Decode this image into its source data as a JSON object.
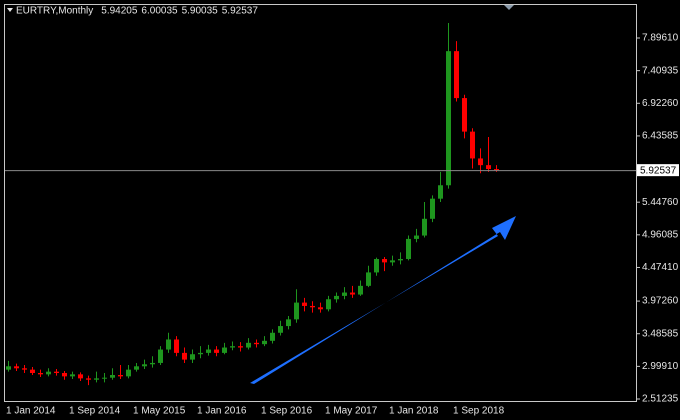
{
  "chart_data": {
    "type": "candlestick",
    "title": "EURTRY,Monthly",
    "categories": [
      "1 Jan 2014",
      null,
      null,
      null,
      null,
      null,
      null,
      null,
      "1 Sep 2014",
      null,
      null,
      null,
      null,
      null,
      null,
      null,
      "1 May 2015",
      null,
      null,
      null,
      null,
      null,
      null,
      null,
      "1 Jan 2016",
      null,
      null,
      null,
      null,
      null,
      null,
      null,
      "1 Sep 2016",
      null,
      null,
      null,
      null,
      null,
      null,
      null,
      "1 May 2017",
      null,
      null,
      null,
      null,
      null,
      null,
      null,
      "1 Jan 2018",
      null,
      null,
      null,
      null,
      null,
      null,
      null,
      "1 Sep 2018",
      null,
      null,
      null,
      null,
      null
    ],
    "open": [
      2.95,
      3.0,
      2.97,
      2.95,
      2.9,
      2.88,
      2.92,
      2.9,
      2.85,
      2.88,
      2.82,
      2.8,
      2.82,
      2.83,
      2.87,
      2.85,
      2.95,
      3.0,
      3.03,
      3.05,
      3.25,
      3.4,
      3.2,
      3.1,
      3.18,
      3.2,
      3.25,
      3.2,
      3.28,
      3.3,
      3.28,
      3.35,
      3.33,
      3.38,
      3.5,
      3.6,
      3.7,
      3.95,
      3.9,
      3.88,
      3.85,
      4.0,
      4.05,
      4.1,
      4.07,
      4.2,
      4.4,
      4.6,
      4.55,
      4.58,
      4.6,
      4.9,
      4.95,
      5.2,
      5.5,
      5.7,
      7.7,
      7.0,
      6.5,
      6.1,
      6.0,
      5.94205
    ],
    "high": [
      3.08,
      3.04,
      3.02,
      2.99,
      2.95,
      2.97,
      2.96,
      2.93,
      2.92,
      2.91,
      2.86,
      2.92,
      2.9,
      2.97,
      3.02,
      3.02,
      3.05,
      3.1,
      3.15,
      3.3,
      3.5,
      3.45,
      3.28,
      3.25,
      3.3,
      3.32,
      3.3,
      3.35,
      3.37,
      3.36,
      3.42,
      3.4,
      3.45,
      3.55,
      3.68,
      3.75,
      4.15,
      4.02,
      3.97,
      3.95,
      4.05,
      4.1,
      4.18,
      4.2,
      4.28,
      4.5,
      4.62,
      4.63,
      4.65,
      4.7,
      4.95,
      5.05,
      5.45,
      5.55,
      5.9,
      8.12,
      7.85,
      7.05,
      6.55,
      6.25,
      6.42,
      6.00035
    ],
    "low": [
      2.92,
      2.93,
      2.9,
      2.87,
      2.84,
      2.85,
      2.86,
      2.8,
      2.81,
      2.78,
      2.72,
      2.76,
      2.76,
      2.8,
      2.81,
      2.82,
      2.92,
      2.96,
      2.98,
      3.02,
      3.2,
      3.15,
      3.05,
      3.05,
      3.12,
      3.16,
      3.15,
      3.18,
      3.24,
      3.22,
      3.25,
      3.28,
      3.3,
      3.34,
      3.46,
      3.55,
      3.65,
      3.82,
      3.8,
      3.8,
      3.82,
      3.95,
      4.0,
      4.02,
      4.05,
      4.18,
      4.35,
      4.42,
      4.5,
      4.52,
      4.58,
      4.85,
      4.92,
      5.15,
      5.45,
      5.65,
      6.95,
      6.4,
      5.95,
      5.88,
      5.9,
      5.90035
    ],
    "close": [
      3.0,
      2.97,
      2.95,
      2.9,
      2.88,
      2.92,
      2.9,
      2.85,
      2.88,
      2.82,
      2.8,
      2.82,
      2.83,
      2.87,
      2.85,
      2.95,
      3.0,
      3.03,
      3.05,
      3.25,
      3.4,
      3.2,
      3.1,
      3.18,
      3.2,
      3.25,
      3.2,
      3.28,
      3.3,
      3.28,
      3.35,
      3.33,
      3.38,
      3.5,
      3.6,
      3.7,
      3.95,
      3.9,
      3.88,
      3.85,
      4.0,
      4.05,
      4.1,
      4.07,
      4.2,
      4.4,
      4.6,
      4.55,
      4.58,
      4.6,
      4.9,
      4.95,
      5.2,
      5.5,
      5.7,
      7.7,
      7.0,
      6.5,
      6.1,
      6.0,
      5.94205,
      5.92537
    ],
    "up_color": "#1e961e",
    "down_color": "#ff0000",
    "price_line_color": "#8a8a8a",
    "ylim": [
      2.4974,
      8.3884
    ],
    "yticks": [
      {
        "value": 2.51235,
        "label": "2.51235"
      },
      {
        "value": 2.9991,
        "label": "2.99910"
      },
      {
        "value": 3.48585,
        "label": "3.48585"
      },
      {
        "value": 3.9726,
        "label": "3.97260"
      },
      {
        "value": 4.4741,
        "label": "4.47410"
      },
      {
        "value": 4.96085,
        "label": "4.96085"
      },
      {
        "value": 5.4476,
        "label": "5.44760"
      },
      {
        "value": 6.43585,
        "label": "6.43585"
      },
      {
        "value": 6.9226,
        "label": "6.92260"
      },
      {
        "value": 7.40935,
        "label": "7.40935"
      },
      {
        "value": 7.8961,
        "label": "7.89610"
      }
    ]
  }
}
